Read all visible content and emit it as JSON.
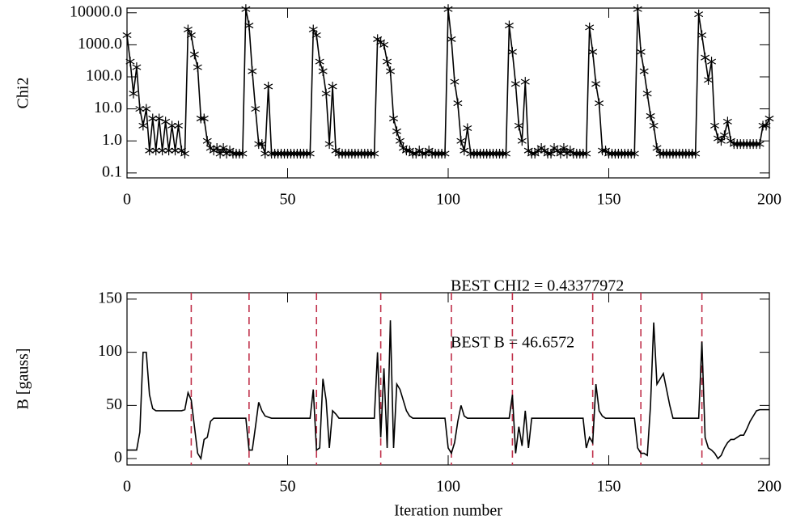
{
  "chart_data": [
    {
      "type": "line",
      "ylabel": "Chi2",
      "ylog": true,
      "marker": "asterisk",
      "color": "#000000",
      "xlim": [
        0,
        200
      ],
      "xticks": [
        0,
        50,
        100,
        150,
        200
      ],
      "ylim": [
        0.07,
        14000
      ],
      "yticks": [
        0.1,
        {
          "value": 1,
          "label": "1.0"
        },
        {
          "value": 10,
          "label": "10.0"
        },
        {
          "value": 100,
          "label": "100.0"
        },
        {
          "value": 1000,
          "label": "1000.0"
        },
        {
          "value": 10000,
          "label": "10000.0"
        }
      ],
      "values": [
        2000,
        300,
        30,
        200,
        10,
        3,
        10,
        0.5,
        5,
        0.5,
        5,
        0.5,
        4,
        0.5,
        3,
        0.5,
        3,
        0.5,
        0.4,
        3000,
        2000,
        500,
        200,
        5,
        5,
        1,
        0.6,
        0.5,
        0.6,
        0.4,
        0.6,
        0.4,
        0.5,
        0.4,
        0.4,
        0.4,
        0.4,
        13000,
        4000,
        150,
        10,
        0.8,
        0.8,
        0.4,
        50,
        0.4,
        0.4,
        0.4,
        0.4,
        0.4,
        0.4,
        0.4,
        0.4,
        0.4,
        0.4,
        0.4,
        0.4,
        0.4,
        3000,
        2000,
        300,
        150,
        30,
        0.8,
        50,
        0.5,
        0.4,
        0.4,
        0.4,
        0.4,
        0.4,
        0.4,
        0.4,
        0.4,
        0.4,
        0.4,
        0.4,
        0.4,
        1500,
        1200,
        1000,
        300,
        150,
        5,
        2,
        1,
        0.6,
        0.5,
        0.5,
        0.4,
        0.4,
        0.5,
        0.4,
        0.4,
        0.5,
        0.4,
        0.4,
        0.4,
        0.4,
        0.4,
        13000,
        1500,
        70,
        15,
        1,
        0.5,
        2.5,
        0.4,
        0.4,
        0.4,
        0.4,
        0.4,
        0.4,
        0.4,
        0.4,
        0.4,
        0.4,
        0.4,
        0.4,
        4000,
        600,
        60,
        3,
        1,
        70,
        0.5,
        0.4,
        0.4,
        0.5,
        0.6,
        0.5,
        0.4,
        0.4,
        0.6,
        0.5,
        0.4,
        0.6,
        0.4,
        0.5,
        0.4,
        0.4,
        0.4,
        0.4,
        0.4,
        3500,
        600,
        60,
        15,
        0.5,
        0.5,
        0.4,
        0.4,
        0.4,
        0.4,
        0.4,
        0.4,
        0.4,
        0.4,
        0.4,
        13000,
        600,
        150,
        30,
        6,
        3,
        0.6,
        0.4,
        0.4,
        0.4,
        0.4,
        0.4,
        0.4,
        0.4,
        0.4,
        0.4,
        0.4,
        0.4,
        0.4,
        9000,
        2000,
        400,
        80,
        300,
        3,
        1.2,
        1,
        1.5,
        4,
        1,
        0.8,
        0.8,
        0.8,
        0.8,
        0.8,
        0.8,
        0.8,
        0.8,
        0.8,
        3,
        3,
        5
      ]
    },
    {
      "type": "line",
      "ylabel": "B [gauss]",
      "xlabel": "Iteration number",
      "color": "#000000",
      "xlim": [
        0,
        200
      ],
      "xticks": [
        0,
        50,
        100,
        150,
        200
      ],
      "ylim": [
        -6,
        156
      ],
      "yticks": [
        0,
        50,
        100,
        150
      ],
      "vlines": [
        20,
        38,
        59,
        79,
        101,
        120,
        145,
        160,
        179
      ],
      "vline_color": "#c0304a",
      "annotations": [
        "BEST CHI2 = 0.43377972",
        "BEST B = 46.6572"
      ],
      "values": [
        8,
        8,
        8,
        8,
        25,
        100,
        100,
        60,
        47,
        45,
        45,
        45,
        45,
        45,
        45,
        45,
        45,
        45,
        46,
        62,
        55,
        30,
        5,
        0,
        18,
        20,
        35,
        38,
        38,
        38,
        38,
        38,
        38,
        38,
        38,
        38,
        38,
        38,
        8,
        8,
        30,
        53,
        45,
        40,
        39,
        38,
        38,
        38,
        38,
        38,
        38,
        38,
        38,
        38,
        38,
        38,
        38,
        38,
        65,
        8,
        10,
        75,
        55,
        10,
        45,
        42,
        38,
        38,
        38,
        38,
        38,
        38,
        38,
        38,
        38,
        38,
        38,
        38,
        100,
        20,
        85,
        10,
        130,
        10,
        70,
        65,
        55,
        45,
        40,
        38,
        38,
        38,
        38,
        38,
        38,
        38,
        38,
        38,
        38,
        38,
        10,
        5,
        15,
        35,
        50,
        40,
        38,
        38,
        38,
        38,
        38,
        38,
        38,
        38,
        38,
        38,
        38,
        38,
        38,
        38,
        60,
        5,
        30,
        12,
        45,
        10,
        38,
        38,
        38,
        38,
        38,
        38,
        38,
        38,
        38,
        38,
        38,
        38,
        38,
        38,
        38,
        38,
        38,
        10,
        20,
        15,
        70,
        45,
        40,
        38,
        38,
        38,
        38,
        38,
        38,
        38,
        38,
        38,
        38,
        10,
        5,
        5,
        3,
        50,
        128,
        70,
        75,
        80,
        65,
        50,
        38,
        38,
        38,
        38,
        38,
        38,
        38,
        38,
        38,
        110,
        20,
        10,
        8,
        5,
        0,
        3,
        10,
        15,
        18,
        18,
        20,
        22,
        22,
        28,
        35,
        40,
        45,
        46,
        46,
        46,
        46
      ]
    }
  ]
}
